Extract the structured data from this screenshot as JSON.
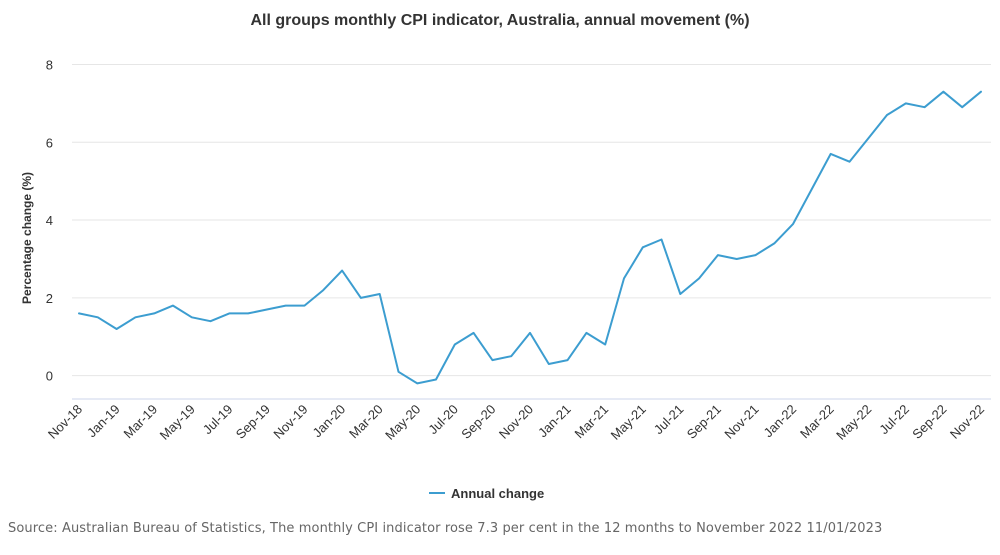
{
  "chart_data": {
    "type": "line",
    "title": "All groups monthly CPI indicator, Australia, annual movement (%)",
    "ylabel": "Percentage change (%)",
    "xlabel": "",
    "ylim": [
      -0.6,
      8.5
    ],
    "yticks": [
      0,
      2,
      4,
      6,
      8
    ],
    "grid": true,
    "legend_position": "bottom-center",
    "categories": [
      "Nov-18",
      "Dec-18",
      "Jan-19",
      "Feb-19",
      "Mar-19",
      "Apr-19",
      "May-19",
      "Jun-19",
      "Jul-19",
      "Aug-19",
      "Sep-19",
      "Oct-19",
      "Nov-19",
      "Dec-19",
      "Jan-20",
      "Feb-20",
      "Mar-20",
      "Apr-20",
      "May-20",
      "Jun-20",
      "Jul-20",
      "Aug-20",
      "Sep-20",
      "Oct-20",
      "Nov-20",
      "Dec-20",
      "Jan-21",
      "Feb-21",
      "Mar-21",
      "Apr-21",
      "May-21",
      "Jun-21",
      "Jul-21",
      "Aug-21",
      "Sep-21",
      "Oct-21",
      "Nov-21",
      "Dec-21",
      "Jan-22",
      "Feb-22",
      "Mar-22",
      "Apr-22",
      "May-22",
      "Jun-22",
      "Jul-22",
      "Aug-22",
      "Sep-22",
      "Oct-22",
      "Nov-22"
    ],
    "tick_labels": [
      "Nov-18",
      "Jan-19",
      "Mar-19",
      "May-19",
      "Jul-19",
      "Sep-19",
      "Nov-19",
      "Jan-20",
      "Mar-20",
      "May-20",
      "Jul-20",
      "Sep-20",
      "Nov-20",
      "Jan-21",
      "Mar-21",
      "May-21",
      "Jul-21",
      "Sep-21",
      "Nov-21",
      "Jan-22",
      "Mar-22",
      "May-22",
      "Jul-22",
      "Sep-22",
      "Nov-22"
    ],
    "series": [
      {
        "name": "Annual change",
        "color": "#3c9dd0",
        "values": [
          1.6,
          1.5,
          1.2,
          1.5,
          1.6,
          1.8,
          1.5,
          1.4,
          1.6,
          1.6,
          1.7,
          1.8,
          1.8,
          2.2,
          2.7,
          2.0,
          2.1,
          0.1,
          -0.2,
          -0.1,
          0.8,
          1.1,
          0.4,
          0.5,
          1.1,
          0.3,
          0.4,
          1.1,
          0.8,
          2.5,
          3.3,
          3.5,
          2.1,
          2.5,
          3.1,
          3.0,
          3.1,
          3.4,
          3.9,
          4.8,
          5.7,
          5.5,
          6.1,
          6.7,
          7.0,
          6.9,
          7.3,
          6.9,
          7.3
        ]
      }
    ]
  },
  "source_text": "Source: Australian Bureau of Statistics, The monthly CPI indicator rose 7.3 per cent in the 12 months to November 2022 11/01/2023",
  "colors": {
    "gridline": "#e6e6e6",
    "axis": "#ccd6eb",
    "series": "#3c9dd0"
  }
}
